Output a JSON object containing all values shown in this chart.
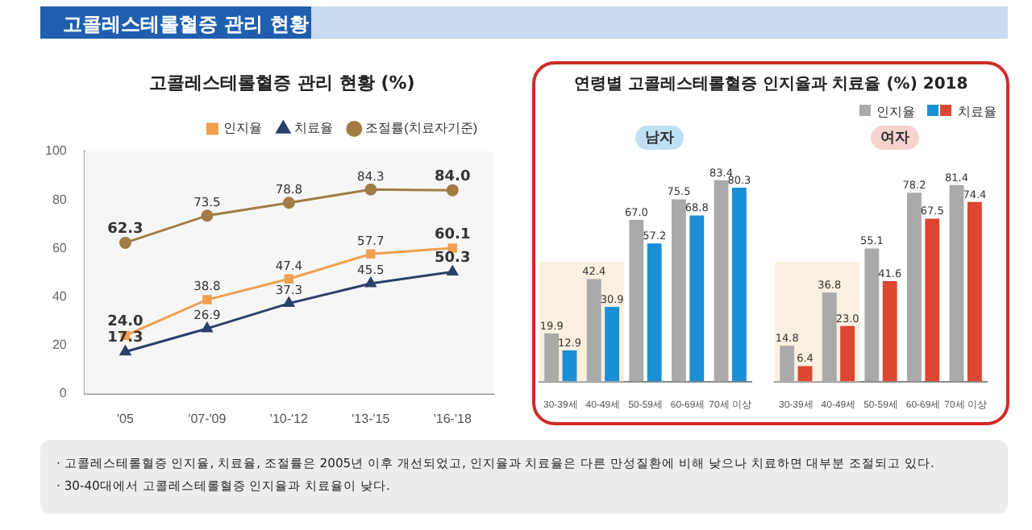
{
  "chart_data": [
    {
      "type": "line",
      "title": "고콜레스테롤혈증 관리 현황 (%)",
      "categories": [
        "'05",
        "'07-'09",
        "'10-'12",
        "'13-'15",
        "'16-'18"
      ],
      "series": [
        {
          "name": "인지율",
          "color": "#f0a050",
          "marker": "square",
          "values": [
            24.0,
            38.8,
            47.4,
            57.7,
            60.1
          ],
          "value_labels": [
            "24.0",
            "38.8",
            "47.4",
            "57.7",
            "60.1"
          ]
        },
        {
          "name": "치료율",
          "color": "#2b3f6b",
          "marker": "triangle",
          "values": [
            17.3,
            26.9,
            37.3,
            45.5,
            50.3
          ],
          "value_labels": [
            "17.3",
            "26.9",
            "37.3",
            "45.5",
            "50.3"
          ]
        },
        {
          "name": "조절률(치료자기준)",
          "color": "#a27b45",
          "marker": "circle",
          "values": [
            62.3,
            73.5,
            78.8,
            84.3,
            84.0
          ],
          "value_labels": [
            "62.3",
            "73.5",
            "78.8",
            "84.3",
            "84.0"
          ]
        }
      ],
      "ylim": [
        0,
        100
      ],
      "yticks": [
        0,
        20,
        40,
        60,
        80,
        100
      ],
      "grid": false,
      "legend": "top right",
      "annotations": [
        "고콜레스테롤혈증 관리 현황",
        "· 고콜레스테롤혈증 인지율, 치료율, 조절률은 2005년 이후 개선되었고, 인지율과 치료율은 다른 만성질환에 비해 낮으나 치료하면 대부분 조절되고 있다.",
        "· 30-40대에서 고콜레스테롤혈증 인지율과 치료율이 낮다."
      ]
    },
    {
      "type": "bar",
      "title": "연령별 고콜레스테롤혈증 인지율과 치료율 (%) 2018",
      "subtitle": "남자",
      "categories": [
        "30-39세",
        "40-49세",
        "50-59세",
        "60-69세",
        "70세 이상"
      ],
      "series": [
        {
          "name": "인지율",
          "color": "#aaaaaa",
          "values": [
            19.9,
            42.4,
            67.0,
            75.5,
            83.4
          ],
          "value_labels": [
            "19.9",
            "42.4",
            "67.0",
            "75.5",
            "83.4"
          ]
        },
        {
          "name": "치료율",
          "color": "#1b8fd4",
          "values": [
            12.9,
            30.9,
            57.2,
            68.8,
            80.3
          ],
          "value_labels": [
            "12.9",
            "30.9",
            "57.2",
            "68.8",
            "80.3"
          ]
        }
      ],
      "bands": [
        {
          "axis": "x",
          "from": "30-39세",
          "to": "40-49세",
          "color": "#fbf0e0"
        }
      ],
      "legend": "top right",
      "tick_labels": "x"
    },
    {
      "type": "bar",
      "subtitle": "여자",
      "categories": [
        "30-39세",
        "40-49세",
        "50-59세",
        "60-69세",
        "70세 이상"
      ],
      "series": [
        {
          "color": "#aaaaaa",
          "values": [
            14.8,
            36.8,
            55.1,
            78.2,
            81.4
          ],
          "value_labels": [
            "14.8",
            "36.8",
            "55.1",
            "78.2",
            "81.4"
          ]
        },
        {
          "color": "#dd4630",
          "values": [
            6.4,
            23.0,
            41.6,
            67.5,
            74.4
          ],
          "value_labels": [
            "6.4",
            "23.0",
            "41.6",
            "67.5",
            "74.4"
          ]
        }
      ],
      "bands": [
        {
          "axis": "x",
          "from": "30-39세",
          "to": "40-49세",
          "color": "#fbf0e0"
        }
      ],
      "tick_labels": "x"
    }
  ]
}
